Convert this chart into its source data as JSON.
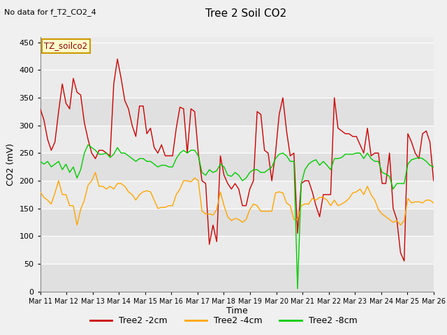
{
  "title": "Tree 2 Soil CO2",
  "subtitle": "No data for f_T2_CO2_4",
  "ylabel": "CO2 (mV)",
  "xlabel": "Time",
  "annotation": "TZ_soilco2",
  "ylim": [
    0,
    460
  ],
  "yticks": [
    0,
    50,
    100,
    150,
    200,
    250,
    300,
    350,
    400,
    450
  ],
  "xtick_labels": [
    "Mar 11",
    "Mar 12",
    "Mar 13",
    "Mar 14",
    "Mar 15",
    "Mar 16",
    "Mar 17",
    "Mar 18",
    "Mar 19",
    "Mar 20",
    "Mar 21",
    "Mar 22",
    "Mar 23",
    "Mar 24",
    "Mar 25",
    "Mar 26"
  ],
  "color_2cm": "#cc0000",
  "color_4cm": "#ffa500",
  "color_8cm": "#00cc00",
  "bg_color": "#e0e0e0",
  "bg_stripe_light": "#ebebeb",
  "legend_labels": [
    "Tree2 -2cm",
    "Tree2 -4cm",
    "Tree2 -8cm"
  ],
  "tree2_2cm": [
    330,
    310,
    275,
    255,
    270,
    325,
    375,
    340,
    330,
    385,
    360,
    355,
    305,
    275,
    250,
    240,
    255,
    255,
    250,
    245,
    375,
    420,
    385,
    345,
    330,
    300,
    280,
    335,
    335,
    285,
    295,
    260,
    250,
    265,
    245,
    245,
    245,
    295,
    333,
    330,
    250,
    330,
    325,
    250,
    200,
    195,
    85,
    120,
    90,
    245,
    210,
    195,
    185,
    195,
    185,
    155,
    155,
    185,
    200,
    325,
    320,
    255,
    250,
    200,
    250,
    320,
    350,
    290,
    245,
    250,
    105,
    195,
    200,
    200,
    180,
    155,
    135,
    175,
    175,
    175,
    350,
    295,
    290,
    285,
    285,
    280,
    280,
    265,
    250,
    295,
    245,
    250,
    250,
    195,
    195,
    250,
    150,
    130,
    70,
    55,
    285,
    270,
    250,
    240,
    285,
    290,
    270,
    200
  ],
  "tree2_4cm": [
    180,
    170,
    165,
    158,
    178,
    200,
    175,
    175,
    155,
    155,
    120,
    148,
    165,
    192,
    200,
    215,
    190,
    190,
    185,
    190,
    185,
    195,
    195,
    190,
    180,
    175,
    165,
    175,
    180,
    182,
    180,
    165,
    150,
    152,
    152,
    155,
    155,
    175,
    185,
    200,
    200,
    198,
    205,
    200,
    145,
    140,
    140,
    138,
    148,
    180,
    155,
    135,
    128,
    132,
    130,
    125,
    130,
    148,
    158,
    155,
    145,
    145,
    145,
    145,
    178,
    180,
    178,
    160,
    155,
    130,
    130,
    155,
    158,
    158,
    168,
    165,
    170,
    170,
    165,
    155,
    165,
    155,
    158,
    162,
    168,
    178,
    180,
    185,
    175,
    190,
    175,
    165,
    148,
    140,
    135,
    130,
    125,
    128,
    120,
    128,
    168,
    160,
    162,
    162,
    160,
    165,
    165,
    160
  ],
  "tree2_8cm": [
    235,
    230,
    235,
    225,
    230,
    235,
    220,
    230,
    215,
    225,
    205,
    220,
    250,
    265,
    260,
    255,
    248,
    248,
    250,
    242,
    248,
    260,
    250,
    250,
    245,
    240,
    235,
    240,
    240,
    235,
    235,
    230,
    225,
    228,
    228,
    225,
    225,
    240,
    250,
    255,
    250,
    255,
    255,
    245,
    215,
    210,
    220,
    215,
    218,
    230,
    225,
    210,
    208,
    215,
    210,
    200,
    205,
    215,
    220,
    220,
    215,
    215,
    220,
    225,
    240,
    248,
    250,
    245,
    235,
    235,
    5,
    195,
    220,
    230,
    235,
    238,
    228,
    235,
    228,
    220,
    240,
    240,
    242,
    248,
    248,
    248,
    250,
    250,
    240,
    250,
    240,
    235,
    235,
    215,
    212,
    208,
    185,
    195,
    195,
    195,
    230,
    238,
    240,
    242,
    240,
    235,
    228,
    225
  ]
}
